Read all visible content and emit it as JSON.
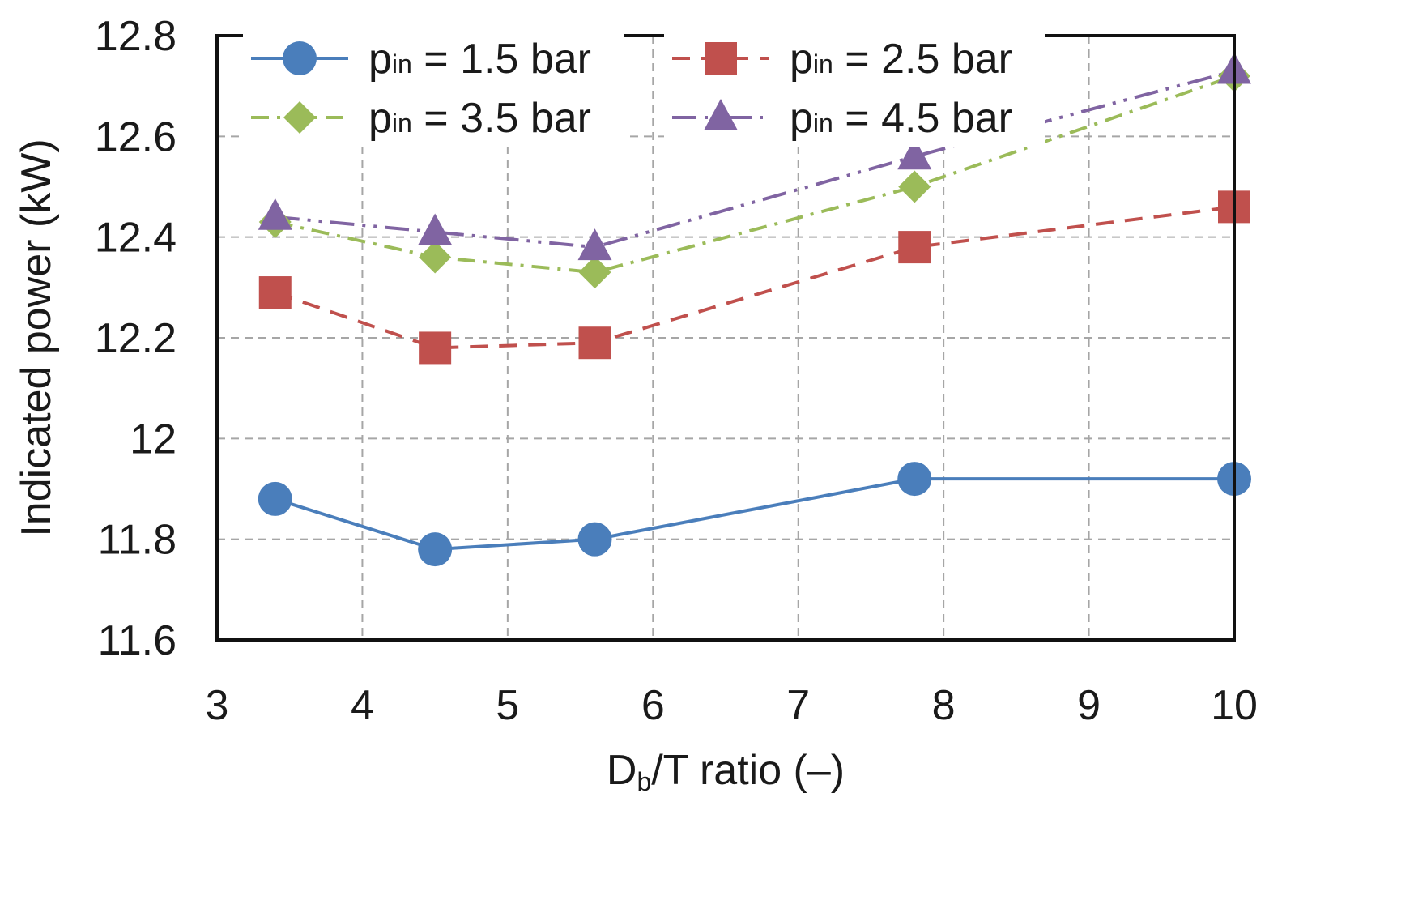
{
  "chart_data": {
    "type": "line",
    "xlabel": {
      "main": "D",
      "sub": "b",
      "rest": "/T ratio (–)"
    },
    "ylabel": "Indicated power (kW)",
    "xlim": [
      3,
      10
    ],
    "ylim": [
      11.6,
      12.8
    ],
    "xticks": [
      3,
      4,
      5,
      6,
      7,
      8,
      9,
      10
    ],
    "yticks": [
      11.6,
      11.8,
      12,
      12.2,
      12.4,
      12.6,
      12.8
    ],
    "ytick_labels": [
      "11.6",
      "11.8",
      "12",
      "12.2",
      "12.4",
      "12.6",
      "12.8"
    ],
    "grid": true,
    "legend_position": "top",
    "x": [
      3.4,
      4.5,
      5.6,
      7.8,
      10.0
    ],
    "series": [
      {
        "name": "pin = 1.5 bar",
        "label_main": "p",
        "label_sub": "in",
        "label_rest": " = 1.5 bar",
        "color": "#4a7ebb",
        "marker": "circle",
        "dash": "",
        "values": [
          11.88,
          11.78,
          11.8,
          11.92,
          11.92
        ]
      },
      {
        "name": "pin = 2.5 bar",
        "label_main": "p",
        "label_sub": "in",
        "label_rest": " = 2.5 bar",
        "color": "#c0504d",
        "marker": "square",
        "dash": "22,14",
        "values": [
          12.29,
          12.18,
          12.19,
          12.38,
          12.46
        ]
      },
      {
        "name": "pin = 3.5 bar",
        "label_main": "p",
        "label_sub": "in",
        "label_rest": " = 3.5 bar",
        "color": "#9bbb59",
        "marker": "diamond",
        "dash": "22,10,4,10",
        "values": [
          12.43,
          12.36,
          12.33,
          12.5,
          12.72
        ]
      },
      {
        "name": "pin = 4.5 bar",
        "label_main": "p",
        "label_sub": "in",
        "label_rest": " = 4.5 bar",
        "color": "#8064a2",
        "marker": "triangle",
        "dash": "30,10,4,10,4,10",
        "values": [
          12.44,
          12.41,
          12.38,
          12.56,
          12.73
        ]
      }
    ]
  }
}
